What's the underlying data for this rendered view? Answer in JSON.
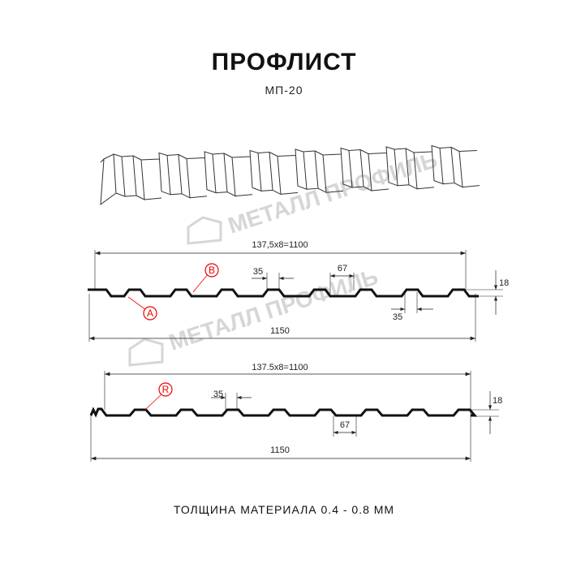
{
  "header": {
    "title": "ПРОФЛИСТ",
    "subtitle": "МП-20"
  },
  "watermark": {
    "text": "МЕТАЛЛ ПРОФИЛЬ"
  },
  "drawing1": {
    "dim_top": "137,5x8=1100",
    "dim_bottom": "1150",
    "dim_pitch_top": "35",
    "dim_pitch_bottom": "35",
    "dim_width": "67",
    "dim_height": "18",
    "label_a": "A",
    "label_b": "B"
  },
  "drawing2": {
    "dim_top": "137.5x8=1100",
    "dim_bottom": "1150",
    "dim_pitch": "35",
    "dim_width": "67",
    "dim_height": "18",
    "label_r": "R"
  },
  "footer": {
    "thickness": "ТОЛЩИНА МАТЕРИАЛА 0.4 - 0.8 ММ"
  },
  "colors": {
    "profile": "#111111",
    "callout": "#e00000",
    "watermark": "#d6d6d6"
  }
}
